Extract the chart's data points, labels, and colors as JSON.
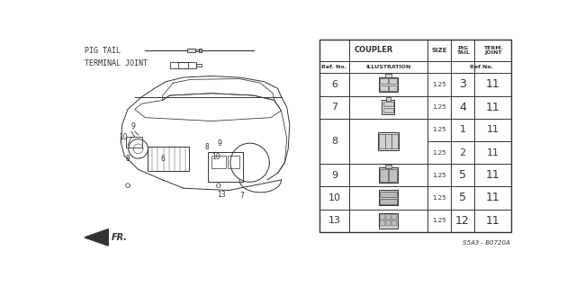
{
  "background_color": "#ffffff",
  "part_code": "S5A3 - B0720A",
  "table_rows": [
    {
      "ref": "6",
      "size": "1.25",
      "pig_tail": "3",
      "term_joint": "11",
      "split": false
    },
    {
      "ref": "7",
      "size": "1.25",
      "pig_tail": "4",
      "term_joint": "11",
      "split": false
    },
    {
      "ref": "8",
      "size": "1.25",
      "pig_tail": "1",
      "term_joint": "11",
      "split": true,
      "size2": "1.25",
      "pig_tail2": "2",
      "term_joint2": "11"
    },
    {
      "ref": "9",
      "size": "1.25",
      "pig_tail": "5",
      "term_joint": "11",
      "split": false
    },
    {
      "ref": "10",
      "size": "1.25",
      "pig_tail": "5",
      "term_joint": "11",
      "split": false
    },
    {
      "ref": "13",
      "size": "1.25",
      "pig_tail": "12",
      "term_joint": "11",
      "split": false
    }
  ]
}
